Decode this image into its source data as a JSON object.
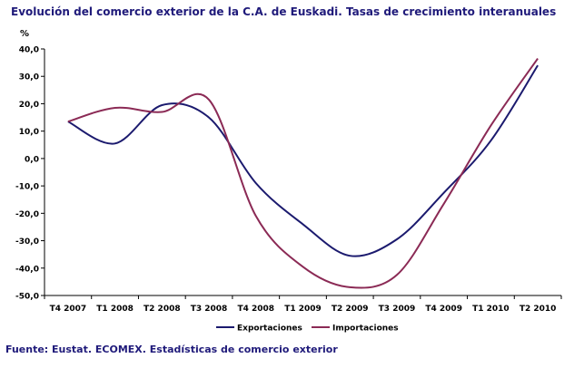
{
  "chart_data": {
    "type": "line",
    "title": "Evolución del comercio exterior de la C.A. de Euskadi. Tasas de crecimiento interanuales",
    "ylabel": "%",
    "xlabel": "",
    "ylim": [
      -50,
      40
    ],
    "yticks": [
      40,
      30,
      20,
      10,
      0,
      -10,
      -20,
      -30,
      -40,
      -50
    ],
    "ytick_labels": [
      "40,0",
      "30,0",
      "20,0",
      "10,0",
      "0,0",
      "-10,0",
      "-20,0",
      "-30,0",
      "-40,0",
      "-50,0"
    ],
    "categories": [
      "T4 2007",
      "T1 2008",
      "T2 2008",
      "T3 2008",
      "T4 2008",
      "T1 2009",
      "T2 2009",
      "T3 2009",
      "T4 2009",
      "T1 2010",
      "T2 2010"
    ],
    "series": [
      {
        "name": "Exportaciones",
        "color": "#1b1a6e",
        "values": [
          13.5,
          5.5,
          19.5,
          15.0,
          -9.0,
          -24.0,
          -35.5,
          -29.5,
          -12.5,
          6.5,
          34.0
        ]
      },
      {
        "name": "Importaciones",
        "color": "#8b2a55",
        "values": [
          13.5,
          18.5,
          17.0,
          21.5,
          -21.0,
          -39.5,
          -47.0,
          -42.5,
          -16.5,
          12.0,
          36.5
        ]
      }
    ],
    "legend": "bottom",
    "grid": false,
    "source": "Fuente: Eustat. ECOMEX. Estadísticas de comercio exterior"
  }
}
